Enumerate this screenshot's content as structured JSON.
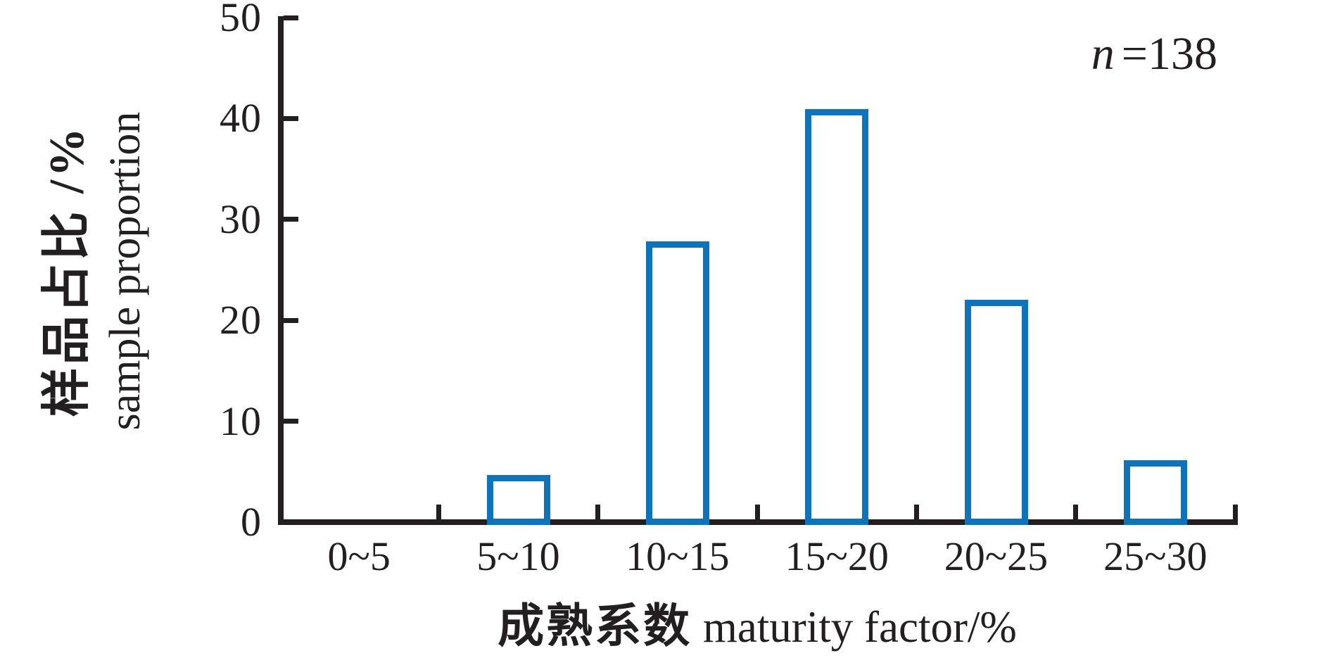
{
  "figure": {
    "annotation": {
      "symbol": "n",
      "rest": "=138"
    },
    "y_axis": {
      "title_zh": "样品占比 /%",
      "title_en": "sample proportion"
    },
    "x_axis": {
      "title_zh": "成熟系数",
      "title_en": " maturity factor/%"
    }
  },
  "chart_data": {
    "type": "bar",
    "categories": [
      "0~5",
      "5~10",
      "10~15",
      "15~20",
      "20~25",
      "25~30"
    ],
    "values": [
      0,
      4.3,
      27.5,
      40.6,
      21.7,
      5.8
    ],
    "title": "",
    "xlabel": "成熟系数 maturity factor/%",
    "ylabel": "样品占比 /% sample proportion",
    "annotation": "n=138",
    "ylim": [
      0,
      50
    ],
    "yticks": [
      0,
      10,
      20,
      30,
      40,
      50
    ],
    "grid": false,
    "legend": "none",
    "bar_fill": "#ffffff",
    "bar_stroke": "#0e73b9",
    "bar_stroke_width": 9,
    "axis_color": "#231f20"
  }
}
